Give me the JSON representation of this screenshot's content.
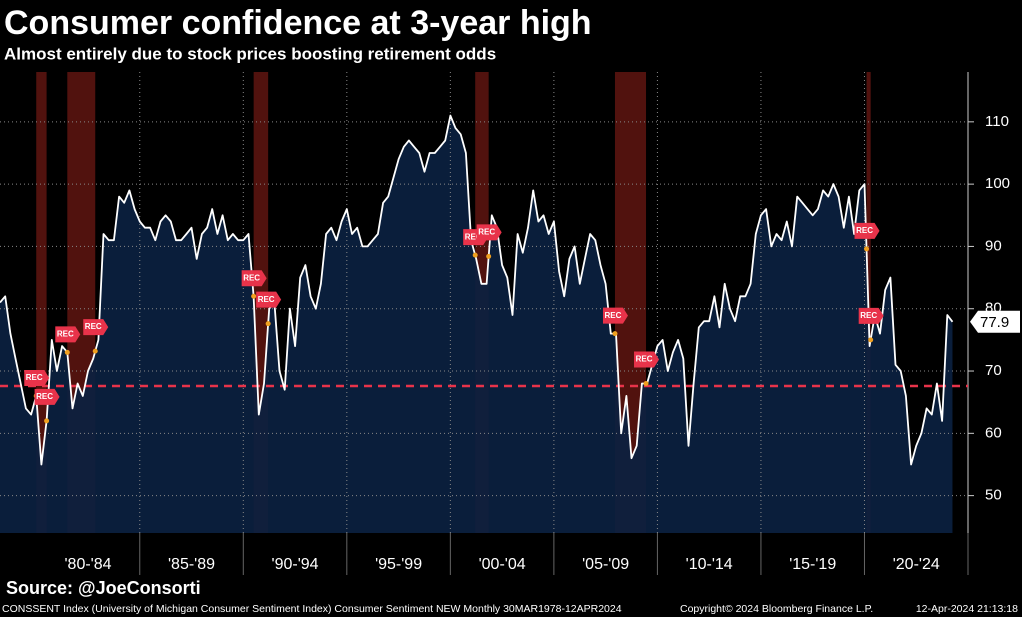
{
  "chart_data": {
    "type": "area-line",
    "title": "Consumer confidence at 3-year high",
    "subtitle": "Almost entirely due to stock prices boosting retirement odds",
    "source": "Source: @JoeConsorti",
    "footer_left": "CONSSENT Index (University of Michigan Consumer Sentiment Index) Consumer Sentiment NEW  Monthly 30MAR1978-12APR2024",
    "footer_copyright": "Copyright© 2024 Bloomberg Finance L.P.",
    "footer_date": "12-Apr-2024 21:13:18",
    "recession_label": "REC",
    "recessions": [
      {
        "start": 1980.0,
        "end": 1980.5
      },
      {
        "start": 1981.5,
        "end": 1982.85
      },
      {
        "start": 1990.5,
        "end": 1991.2
      },
      {
        "start": 2001.2,
        "end": 2001.85
      },
      {
        "start": 2007.95,
        "end": 2009.45
      },
      {
        "start": 2020.1,
        "end": 2020.3
      }
    ],
    "reference_line": 67.6,
    "grid": true,
    "xlim": [
      1978.25,
      2025
    ],
    "xticks": [
      {
        "value": 1980,
        "label": "'80-'84"
      },
      {
        "value": 1985,
        "label": "'85-'89"
      },
      {
        "value": 1990,
        "label": "'90-'94"
      },
      {
        "value": 1995,
        "label": "'95-'99"
      },
      {
        "value": 2000,
        "label": "'00-'04"
      },
      {
        "value": 2005,
        "label": "'05-'09"
      },
      {
        "value": 2010,
        "label": "'10-'14"
      },
      {
        "value": 2015,
        "label": "'15-'19"
      },
      {
        "value": 2020,
        "label": "'20-'24"
      }
    ],
    "ylim": [
      44,
      118
    ],
    "yticks": [
      50,
      60,
      70,
      80,
      90,
      100,
      110
    ],
    "x": [
      1978.25,
      1978.5,
      1978.75,
      1979,
      1979.25,
      1979.5,
      1979.75,
      1980,
      1980.25,
      1980.5,
      1980.75,
      1981,
      1981.25,
      1981.5,
      1981.75,
      1982,
      1982.25,
      1982.5,
      1982.75,
      1983,
      1983.25,
      1983.5,
      1983.75,
      1984,
      1984.25,
      1984.5,
      1984.75,
      1985,
      1985.25,
      1985.5,
      1985.75,
      1986,
      1986.25,
      1986.5,
      1986.75,
      1987,
      1987.25,
      1987.5,
      1987.75,
      1988,
      1988.25,
      1988.5,
      1988.75,
      1989,
      1989.25,
      1989.5,
      1989.75,
      1990,
      1990.25,
      1990.5,
      1990.75,
      1991,
      1991.25,
      1991.5,
      1991.75,
      1992,
      1992.25,
      1992.5,
      1992.75,
      1993,
      1993.25,
      1993.5,
      1993.75,
      1994,
      1994.25,
      1994.5,
      1994.75,
      1995,
      1995.25,
      1995.5,
      1995.75,
      1996,
      1996.25,
      1996.5,
      1996.75,
      1997,
      1997.25,
      1997.5,
      1997.75,
      1998,
      1998.25,
      1998.5,
      1998.75,
      1999,
      1999.25,
      1999.5,
      1999.75,
      2000,
      2000.25,
      2000.5,
      2000.75,
      2001,
      2001.25,
      2001.5,
      2001.75,
      2002,
      2002.25,
      2002.5,
      2002.75,
      2003,
      2003.25,
      2003.5,
      2003.75,
      2004,
      2004.25,
      2004.5,
      2004.75,
      2005,
      2005.25,
      2005.5,
      2005.75,
      2006,
      2006.25,
      2006.5,
      2006.75,
      2007,
      2007.25,
      2007.5,
      2007.75,
      2008,
      2008.25,
      2008.5,
      2008.75,
      2009,
      2009.25,
      2009.5,
      2009.75,
      2010,
      2010.25,
      2010.5,
      2010.75,
      2011,
      2011.25,
      2011.5,
      2011.75,
      2012,
      2012.25,
      2012.5,
      2012.75,
      2013,
      2013.25,
      2013.5,
      2013.75,
      2014,
      2014.25,
      2014.5,
      2014.75,
      2015,
      2015.25,
      2015.5,
      2015.75,
      2016,
      2016.25,
      2016.5,
      2016.75,
      2017,
      2017.25,
      2017.5,
      2017.75,
      2018,
      2018.25,
      2018.5,
      2018.75,
      2019,
      2019.25,
      2019.5,
      2019.75,
      2020,
      2020.25,
      2020.5,
      2020.75,
      2021,
      2021.25,
      2021.5,
      2021.75,
      2022,
      2022.25,
      2022.5,
      2022.75,
      2023,
      2023.25,
      2023.5,
      2023.75,
      2024,
      2024.25
    ],
    "series": [
      {
        "name": "Consumer Sentiment",
        "color": "#ffffff",
        "fill": "#0b2140",
        "values": [
          81,
          82,
          76,
          72,
          68,
          64,
          63,
          66,
          55,
          62,
          75,
          70,
          74,
          73,
          64,
          68,
          66,
          70,
          72,
          75,
          92,
          91,
          91,
          98,
          97,
          99,
          96,
          94,
          93,
          93,
          91,
          94,
          95,
          94,
          91,
          91,
          92,
          93,
          88,
          92,
          93,
          96,
          92,
          95,
          91,
          92,
          91,
          91,
          92,
          82,
          63,
          68,
          80,
          81,
          70,
          67,
          80,
          74,
          85,
          87,
          82,
          80,
          84,
          92,
          93,
          91,
          94,
          96,
          92,
          93,
          90,
          90,
          91,
          92,
          97,
          98,
          101,
          104,
          106,
          107,
          106,
          105,
          102,
          105,
          105,
          106,
          107,
          111,
          109,
          108,
          105,
          91,
          88,
          84,
          84,
          95,
          93,
          87,
          85,
          79,
          92,
          89,
          93,
          99,
          94,
          95,
          92,
          94,
          86,
          82,
          88,
          90,
          84,
          88,
          92,
          91,
          87,
          84,
          76,
          76,
          60,
          66,
          56,
          58,
          68,
          68,
          71,
          74,
          75,
          70,
          73,
          75,
          72,
          58,
          68,
          77,
          78,
          78,
          82,
          77,
          84,
          80,
          78,
          82,
          82,
          84,
          92,
          95,
          96,
          90,
          92,
          91,
          94,
          90,
          98,
          97,
          96,
          95,
          96,
          99,
          98,
          100,
          98,
          93,
          98,
          92,
          99,
          100,
          74,
          79,
          76,
          83,
          85,
          71,
          70,
          66,
          55,
          58,
          60,
          64,
          63,
          68,
          62,
          79,
          77.9
        ]
      }
    ]
  }
}
